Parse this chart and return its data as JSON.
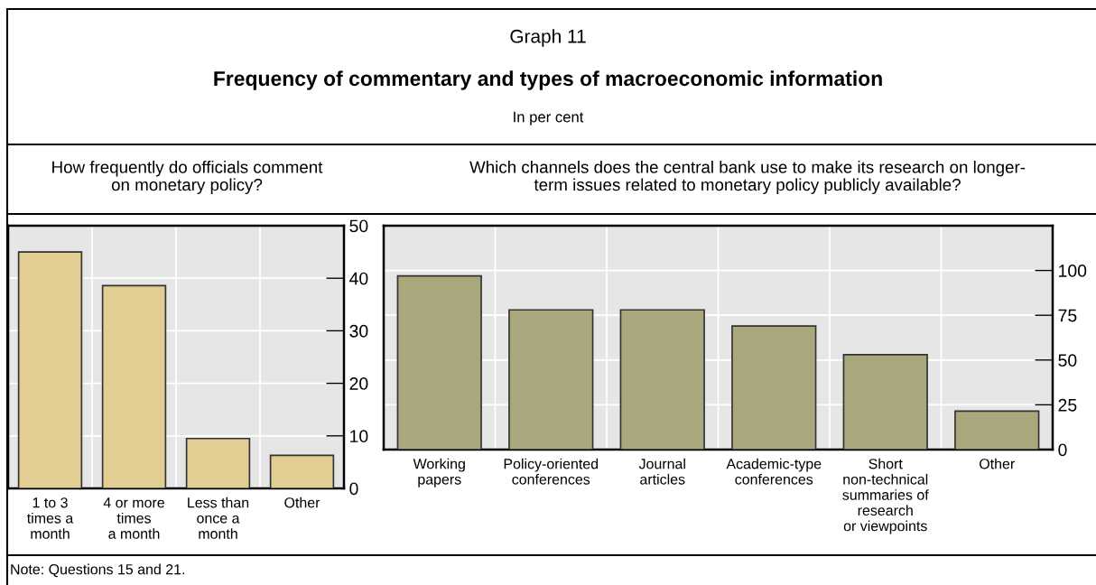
{
  "chart_data": [
    {
      "type": "bar",
      "title": "How frequently do officials comment\non monetary policy?",
      "categories": [
        "1 to 3\ntimes a\nmonth",
        "4 or more\ntimes\na month",
        "Less than\nonce a\nmonth",
        "Other"
      ],
      "values": [
        45,
        38.6,
        9.5,
        6.3
      ],
      "color": "#e2ce93",
      "ylim": [
        0,
        50
      ],
      "yticks": [
        0,
        10,
        20,
        30,
        40,
        50
      ],
      "grid": true,
      "annotations": [
        "Graph 11",
        "Frequency of commentary and types of macroeconomic information",
        "In per cent",
        "Note: Questions 15 and 21."
      ]
    },
    {
      "type": "bar",
      "title": "Which channels does the central bank use to make its research on longer-\nterm issues related to monetary policy publicly available?",
      "categories": [
        "Working\npapers",
        "Policy-oriented\nconferences",
        "Journal\narticles",
        "Academic-type\nconferences",
        "Short\nnon-technical\nsummaries of\nresearch\nor viewpoints",
        "Other"
      ],
      "values": [
        97,
        78,
        78,
        69,
        53,
        21.5
      ],
      "color": "#a8a87c",
      "ylim": [
        0,
        125
      ],
      "yticks": [
        0,
        25,
        50,
        75,
        100
      ],
      "grid": true
    }
  ]
}
